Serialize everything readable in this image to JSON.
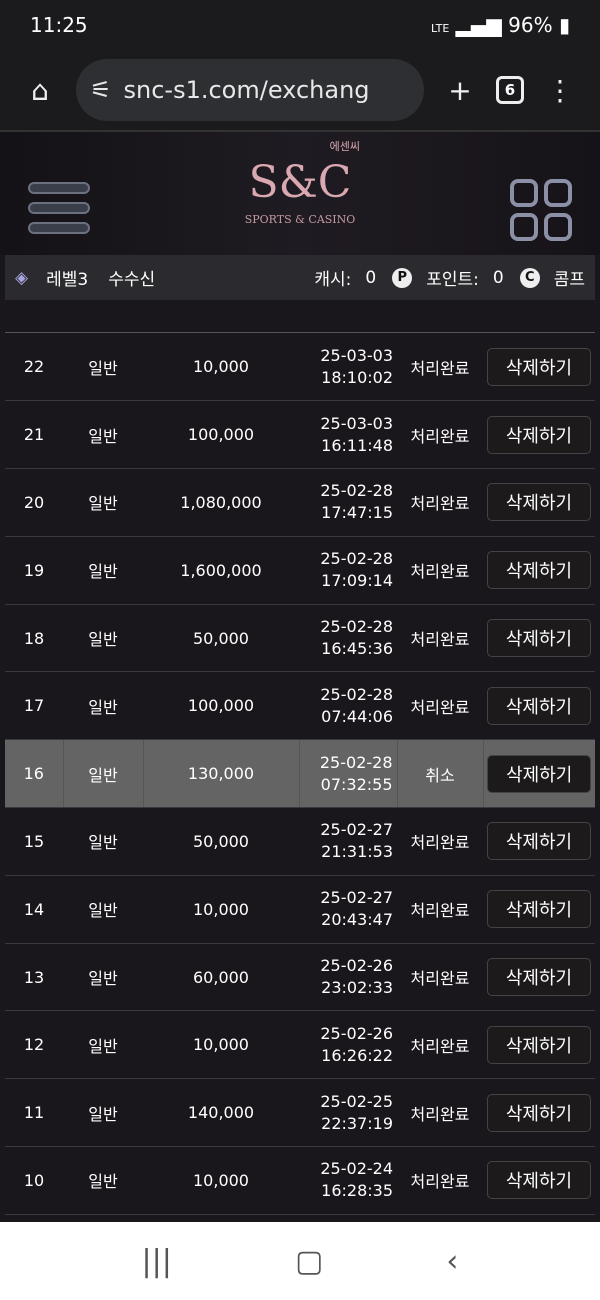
{
  "status_bar": {
    "time": "11:25",
    "battery": "96%",
    "network": "LTE"
  },
  "browser": {
    "url": "snc-s1.com/exchang",
    "tab_count": "6"
  },
  "logo": {
    "main": "S&C",
    "korean": "에센씨",
    "tagline": "SPORTS & CASINO"
  },
  "info_bar": {
    "level": "레벨3",
    "username": "수수신",
    "cash_label": "캐시:",
    "cash_value": "0",
    "point_label": "포인트:",
    "point_value": "0",
    "comp_label": "콤프",
    "p_badge": "P",
    "c_badge": "C"
  },
  "rows": [
    {
      "no": "22",
      "type": "일반",
      "amount": "10,000",
      "date": "25-03-03",
      "time": "18:10:02",
      "status": "처리완료",
      "action": "삭제하기"
    },
    {
      "no": "21",
      "type": "일반",
      "amount": "100,000",
      "date": "25-03-03",
      "time": "16:11:48",
      "status": "처리완료",
      "action": "삭제하기"
    },
    {
      "no": "20",
      "type": "일반",
      "amount": "1,080,000",
      "date": "25-02-28",
      "time": "17:47:15",
      "status": "처리완료",
      "action": "삭제하기"
    },
    {
      "no": "19",
      "type": "일반",
      "amount": "1,600,000",
      "date": "25-02-28",
      "time": "17:09:14",
      "status": "처리완료",
      "action": "삭제하기"
    },
    {
      "no": "18",
      "type": "일반",
      "amount": "50,000",
      "date": "25-02-28",
      "time": "16:45:36",
      "status": "처리완료",
      "action": "삭제하기"
    },
    {
      "no": "17",
      "type": "일반",
      "amount": "100,000",
      "date": "25-02-28",
      "time": "07:44:06",
      "status": "처리완료",
      "action": "삭제하기"
    },
    {
      "no": "16",
      "type": "일반",
      "amount": "130,000",
      "date": "25-02-28",
      "time": "07:32:55",
      "status": "취소",
      "action": "삭제하기",
      "highlighted": true
    },
    {
      "no": "15",
      "type": "일반",
      "amount": "50,000",
      "date": "25-02-27",
      "time": "21:31:53",
      "status": "처리완료",
      "action": "삭제하기"
    },
    {
      "no": "14",
      "type": "일반",
      "amount": "10,000",
      "date": "25-02-27",
      "time": "20:43:47",
      "status": "처리완료",
      "action": "삭제하기"
    },
    {
      "no": "13",
      "type": "일반",
      "amount": "60,000",
      "date": "25-02-26",
      "time": "23:02:33",
      "status": "처리완료",
      "action": "삭제하기"
    },
    {
      "no": "12",
      "type": "일반",
      "amount": "10,000",
      "date": "25-02-26",
      "time": "16:26:22",
      "status": "처리완료",
      "action": "삭제하기"
    },
    {
      "no": "11",
      "type": "일반",
      "amount": "140,000",
      "date": "25-02-25",
      "time": "22:37:19",
      "status": "처리완료",
      "action": "삭제하기"
    },
    {
      "no": "10",
      "type": "일반",
      "amount": "10,000",
      "date": "25-02-24",
      "time": "16:28:35",
      "status": "처리완료",
      "action": "삭제하기"
    }
  ]
}
